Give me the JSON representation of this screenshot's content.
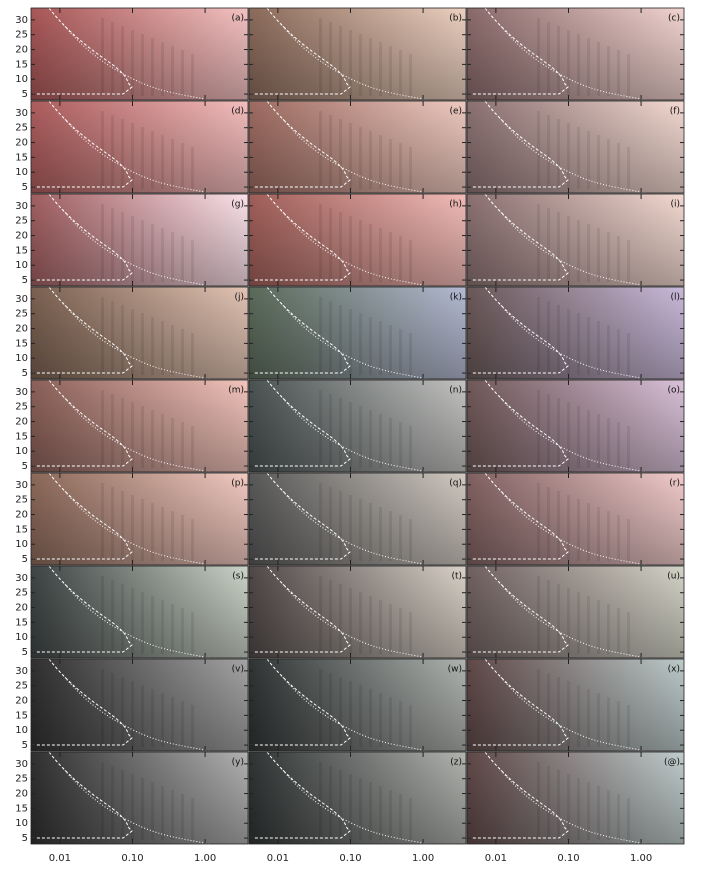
{
  "figure": {
    "axes": {
      "xscale": "log",
      "xlim": [
        0.004,
        3.9
      ],
      "ylim": [
        3,
        34
      ],
      "xticks": [
        {
          "value": 0.01,
          "label": "0.01"
        },
        {
          "value": 0.1,
          "label": "0.10"
        },
        {
          "value": 1,
          "label": "1.00"
        }
      ],
      "yticks": [
        5,
        10,
        15,
        20,
        25,
        30
      ]
    },
    "columns": 3,
    "panels": [
      {
        "label": "(a)",
        "colors": [
          "#a85656",
          "#f4c2c2"
        ]
      },
      {
        "label": "(b)",
        "colors": [
          "#8a6a5a",
          "#ecd0c0"
        ]
      },
      {
        "label": "(c)",
        "colors": [
          "#8a6a6a",
          "#f2d4d0"
        ]
      },
      {
        "label": "(d)",
        "colors": [
          "#ac5c5c",
          "#f4bebe"
        ]
      },
      {
        "label": "(e)",
        "colors": [
          "#9c6a60",
          "#eecac0"
        ]
      },
      {
        "label": "(f)",
        "colors": [
          "#8a7070",
          "#f4dad2"
        ]
      },
      {
        "label": "(g)",
        "colors": [
          "#a05e60",
          "#fbe2ea"
        ]
      },
      {
        "label": "(h)",
        "colors": [
          "#a05e58",
          "#f2bcb8"
        ]
      },
      {
        "label": "(i)",
        "colors": [
          "#8a7070",
          "#f4dad2"
        ]
      },
      {
        "label": "(j)",
        "colors": [
          "#7a6050",
          "#e2c4b4"
        ]
      },
      {
        "label": "(k)",
        "colors": [
          "#5a6a58",
          "#b4bad2"
        ]
      },
      {
        "label": "(l)",
        "colors": [
          "#6a5858",
          "#cabadb"
        ]
      },
      {
        "label": "(m)",
        "colors": [
          "#8a6058",
          "#f2c4bc"
        ]
      },
      {
        "label": "(n)",
        "colors": [
          "#4a5252",
          "#c4c4c2"
        ]
      },
      {
        "label": "(o)",
        "colors": [
          "#705858",
          "#dac2da"
        ]
      },
      {
        "label": "(p)",
        "colors": [
          "#8a6858",
          "#f2cac2"
        ]
      },
      {
        "label": "(q)",
        "colors": [
          "#585858",
          "#d2cac2"
        ]
      },
      {
        "label": "(r)",
        "colors": [
          "#806060",
          "#f2cccc"
        ]
      },
      {
        "label": "(s)",
        "colors": [
          "#3e4444",
          "#ccd4c8"
        ]
      },
      {
        "label": "(t)",
        "colors": [
          "#504848",
          "#dad2c8"
        ]
      },
      {
        "label": "(u)",
        "colors": [
          "#706060",
          "#d4d4c8"
        ]
      },
      {
        "label": "(v)",
        "colors": [
          "#303030",
          "#a4a4a4"
        ]
      },
      {
        "label": "(w)",
        "colors": [
          "#303434",
          "#b0b4b0"
        ]
      },
      {
        "label": "(x)",
        "colors": [
          "#604848",
          "#bccaca"
        ]
      },
      {
        "label": "(y)",
        "colors": [
          "#303030",
          "#b2b2b2"
        ]
      },
      {
        "label": "(z)",
        "colors": [
          "#303434",
          "#b2b4b0"
        ]
      },
      {
        "label": "(@)",
        "colors": [
          "#604848",
          "#c0cccc"
        ]
      }
    ]
  }
}
